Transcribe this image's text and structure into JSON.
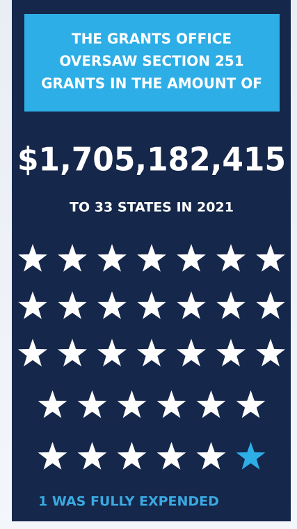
{
  "header": {
    "title": [
      "THE GRANTS OFFICE",
      "OVERSAW SECTION 251",
      "GRANTS IN THE AMOUNT OF"
    ]
  },
  "amount": "$1,705,182,415",
  "subtitle": "TO 33 STATES IN 2021",
  "note": "1 WAS FULLY EXPENDED"
}
